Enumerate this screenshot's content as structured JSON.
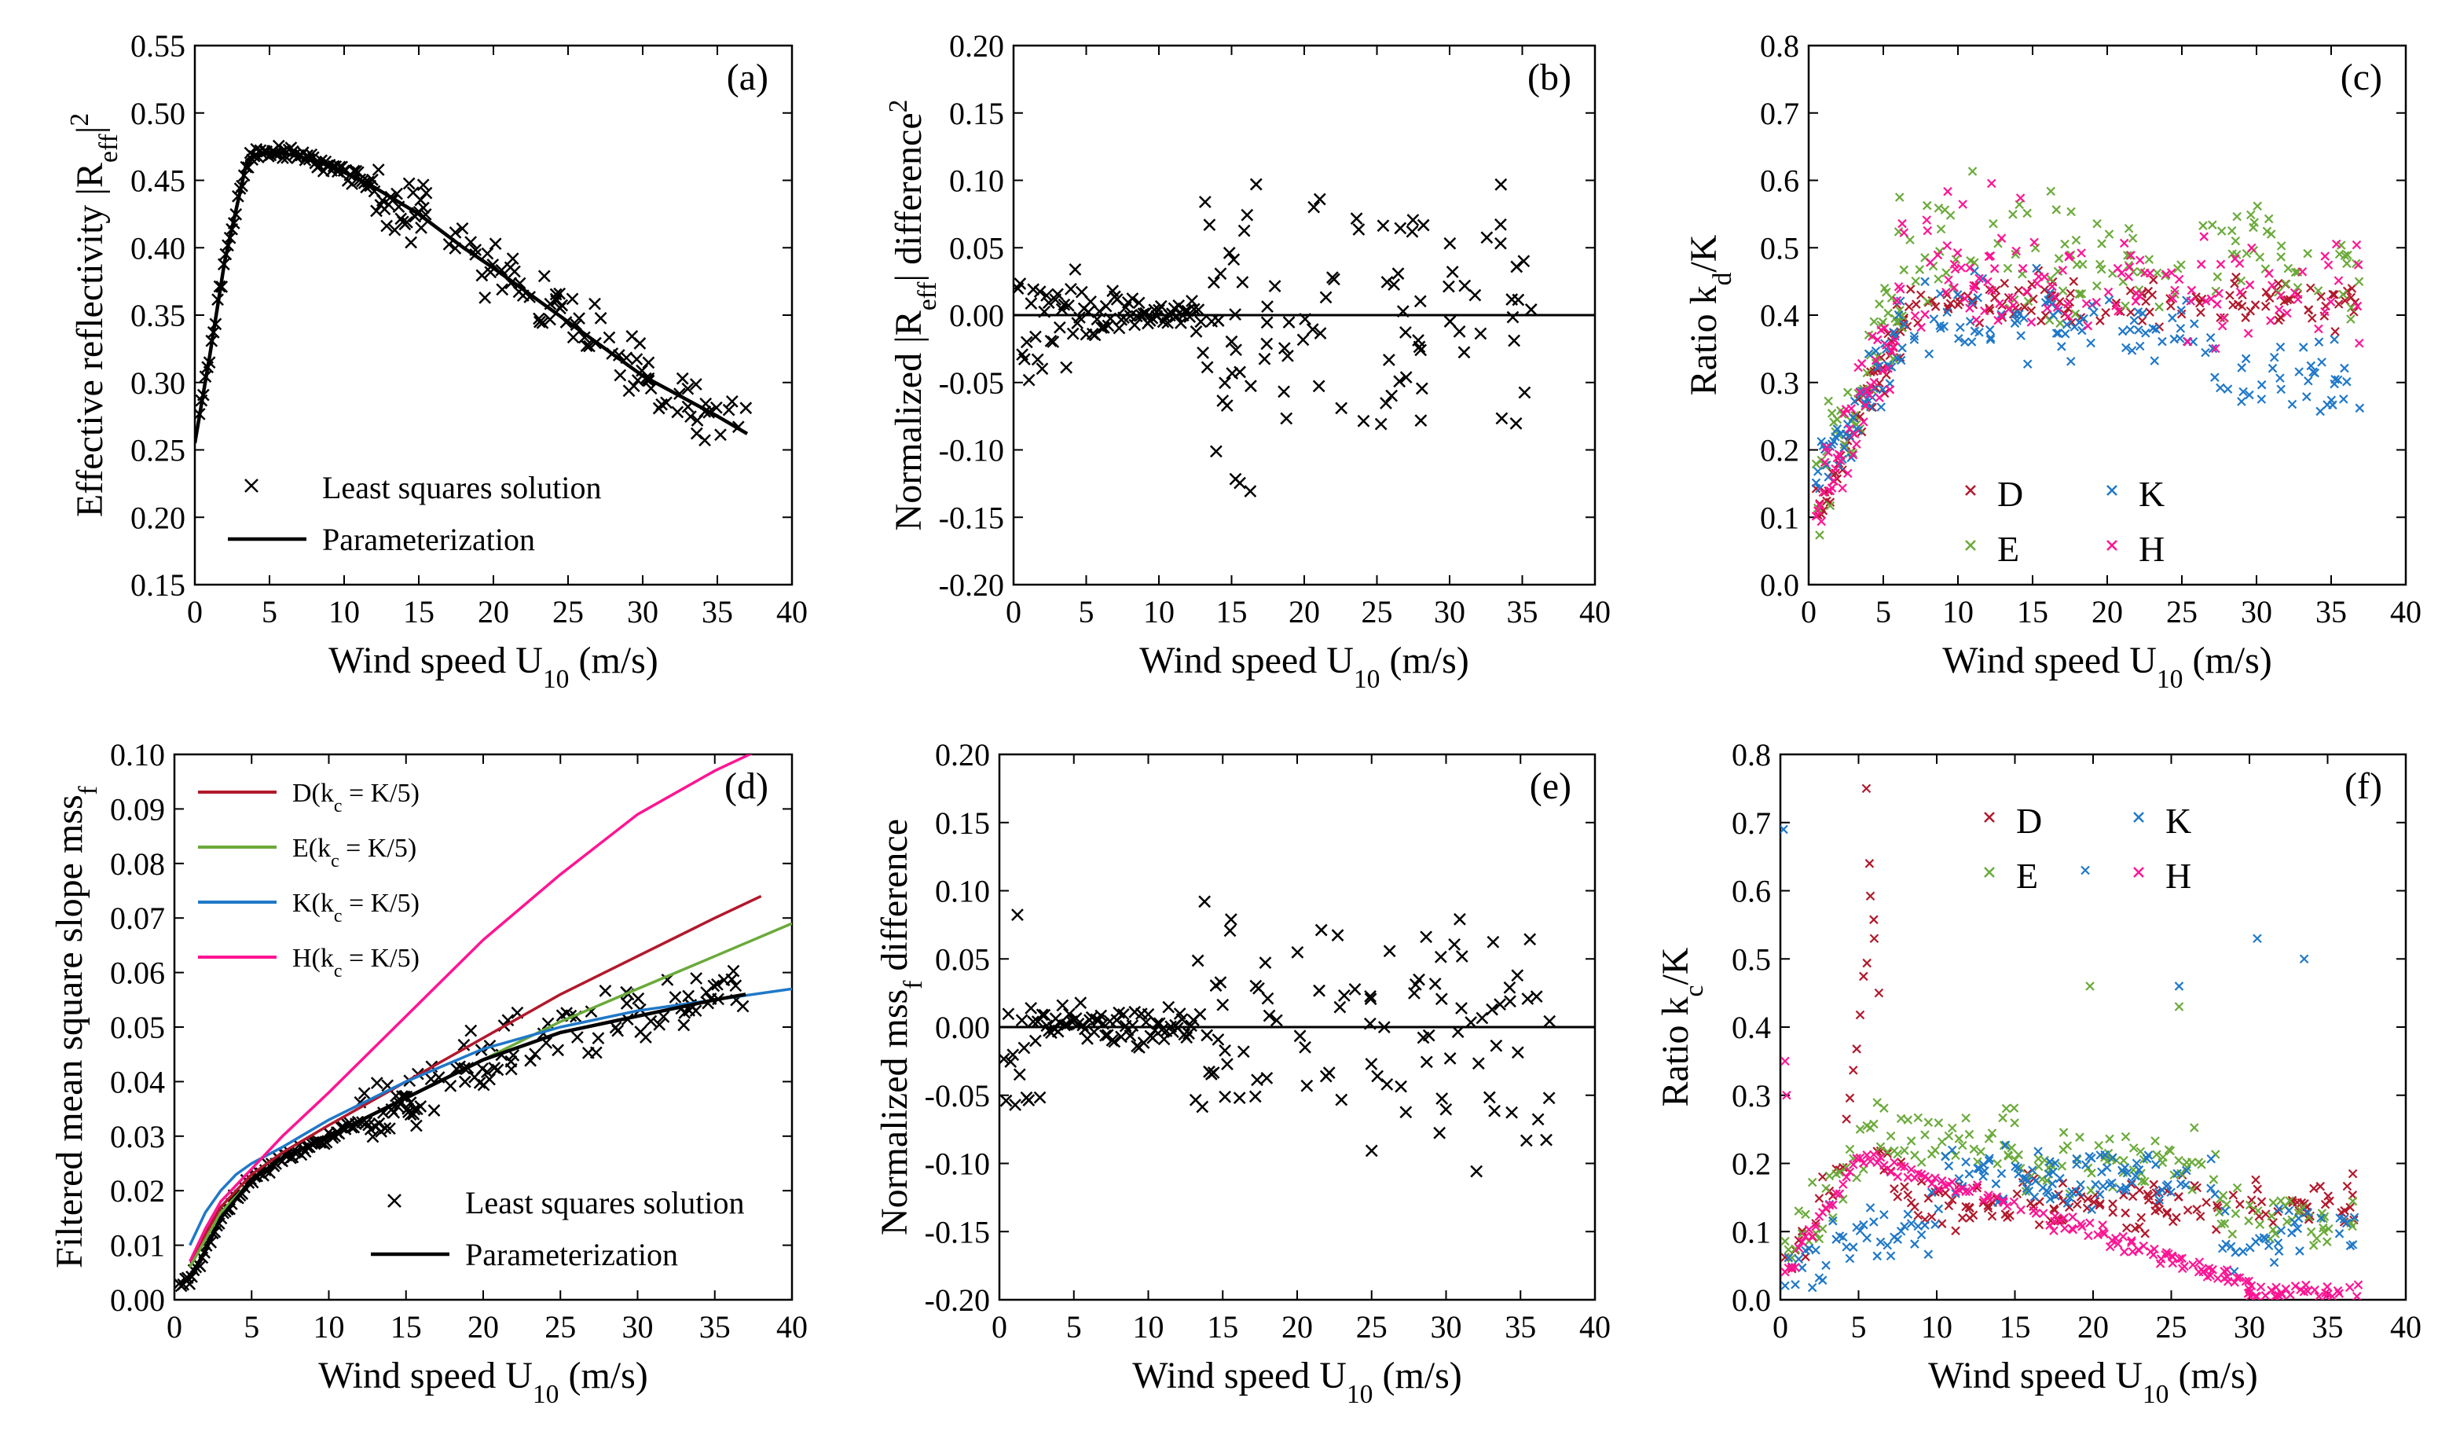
{
  "chart_data": [
    {
      "panel": "(a)",
      "type": "scatter",
      "xlabel": "Wind speed U",
      "xlabel_sub": "10",
      "xlabel_unit": " (m/s)",
      "ylabel": "Effective reflectivity |R",
      "ylabel_sub": "eff",
      "ylabel_sup": "2",
      "ylabel_end": "|",
      "xlim": [
        0,
        40
      ],
      "ylim": [
        0.15,
        0.55
      ],
      "xticks": [
        "0",
        "5",
        "10",
        "15",
        "20",
        "25",
        "30",
        "35",
        "40"
      ],
      "yticks": [
        "0.15",
        "0.20",
        "0.25",
        "0.30",
        "0.35",
        "0.40",
        "0.45",
        "0.50",
        "0.55"
      ],
      "legend": [
        {
          "name": "Least squares solution",
          "marker": "x"
        },
        {
          "name": "Parameterization",
          "marker": "line"
        }
      ],
      "series": [
        {
          "name": "Least squares solution",
          "marker": "x",
          "color": "#000000",
          "gen": "a_scatter"
        },
        {
          "name": "Parameterization",
          "marker": "line",
          "color": "#000000",
          "x": [
            0,
            1,
            2,
            3,
            3.5,
            4,
            5,
            6,
            8,
            10,
            12,
            15,
            18,
            20,
            25,
            30,
            35,
            37
          ],
          "y": [
            0.255,
            0.32,
            0.39,
            0.44,
            0.465,
            0.469,
            0.471,
            0.47,
            0.465,
            0.456,
            0.445,
            0.425,
            0.4,
            0.385,
            0.345,
            0.305,
            0.275,
            0.262
          ]
        }
      ]
    },
    {
      "panel": "(b)",
      "type": "scatter",
      "xlabel": "Wind speed U",
      "xlabel_sub": "10",
      "xlabel_unit": " (m/s)",
      "ylabel": "Normalized |R",
      "ylabel_sub": "eff",
      "ylabel_sup": "2",
      "ylabel_end": "| difference",
      "xlim": [
        0,
        40
      ],
      "ylim": [
        -0.2,
        0.2
      ],
      "xticks": [
        "0",
        "5",
        "10",
        "15",
        "20",
        "25",
        "30",
        "35",
        "40"
      ],
      "yticks": [
        "-0.20",
        "-0.15",
        "-0.10",
        "-0.05",
        "0.00",
        "0.05",
        "0.10",
        "0.15",
        "0.20"
      ],
      "reference_line": 0.0,
      "series": [
        {
          "name": "difference",
          "marker": "x",
          "color": "#000000",
          "gen": "b_scatter"
        }
      ]
    },
    {
      "panel": "(c)",
      "type": "scatter",
      "xlabel": "Wind speed U",
      "xlabel_sub": "10",
      "xlabel_unit": " (m/s)",
      "ylabel": "Ratio k",
      "ylabel_sub": "d",
      "ylabel_end": "/K",
      "xlim": [
        0,
        40
      ],
      "ylim": [
        0.0,
        0.8
      ],
      "xticks": [
        "0",
        "5",
        "10",
        "15",
        "20",
        "25",
        "30",
        "35",
        "40"
      ],
      "yticks": [
        "0.0",
        "0.1",
        "0.2",
        "0.3",
        "0.4",
        "0.5",
        "0.6",
        "0.7",
        "0.8"
      ],
      "legend": [
        {
          "name": "D",
          "color": "#b2182b"
        },
        {
          "name": "K",
          "color": "#1f78c8"
        },
        {
          "name": "E",
          "color": "#6aaa3a"
        },
        {
          "name": "H",
          "color": "#ff1493"
        }
      ],
      "series": [
        {
          "name": "D",
          "color": "#b2182b",
          "gen": "c_D"
        },
        {
          "name": "E",
          "color": "#6aaa3a",
          "gen": "c_E"
        },
        {
          "name": "K",
          "color": "#1f78c8",
          "gen": "c_K"
        },
        {
          "name": "H",
          "color": "#ff1493",
          "gen": "c_H"
        }
      ]
    },
    {
      "panel": "(d)",
      "type": "scatter",
      "xlabel": "Wind speed U",
      "xlabel_sub": "10",
      "xlabel_unit": " (m/s)",
      "ylabel": "Filtered mean square slope mss",
      "ylabel_sub": "f",
      "ylabel_end": "",
      "xlim": [
        0,
        40
      ],
      "ylim": [
        0.0,
        0.1
      ],
      "xticks": [
        "0",
        "5",
        "10",
        "15",
        "20",
        "25",
        "30",
        "35",
        "40"
      ],
      "yticks": [
        "0.00",
        "0.01",
        "0.02",
        "0.03",
        "0.04",
        "0.05",
        "0.06",
        "0.07",
        "0.08",
        "0.09",
        "0.10"
      ],
      "legend_top": [
        {
          "prefix": "D(k",
          "sub": "c",
          "suffix": " = K/5)",
          "color": "#b2182b"
        },
        {
          "prefix": "E(k",
          "sub": "c",
          "suffix": " = K/5)",
          "color": "#6aaa3a"
        },
        {
          "prefix": "K(k",
          "sub": "c",
          "suffix": " = K/5)",
          "color": "#1f78c8"
        },
        {
          "prefix": "H(k",
          "sub": "c",
          "suffix": " = K/5)",
          "color": "#ff1493"
        }
      ],
      "legend_bottom": [
        {
          "name": "Least squares solution",
          "marker": "x"
        },
        {
          "name": "Parameterization",
          "marker": "line"
        }
      ],
      "series": [
        {
          "name": "Least squares solution",
          "marker": "x",
          "color": "#000000",
          "gen": "d_scatter"
        },
        {
          "name": "D(kc = K/5)",
          "marker": "line",
          "color": "#b2182b",
          "x": [
            1,
            2,
            3,
            5,
            7,
            10,
            15,
            20,
            25,
            30,
            35,
            38
          ],
          "y": [
            0.006,
            0.012,
            0.017,
            0.023,
            0.027,
            0.032,
            0.04,
            0.048,
            0.056,
            0.063,
            0.07,
            0.074
          ]
        },
        {
          "name": "E(kc = K/5)",
          "marker": "line",
          "color": "#6aaa3a",
          "x": [
            1,
            2,
            3,
            5,
            7,
            10,
            15,
            20,
            25,
            30,
            35,
            40
          ],
          "y": [
            0.006,
            0.011,
            0.016,
            0.022,
            0.026,
            0.03,
            0.037,
            0.044,
            0.051,
            0.057,
            0.063,
            0.069
          ]
        },
        {
          "name": "K(kc = K/5)",
          "marker": "line",
          "color": "#1f78c8",
          "x": [
            1,
            2,
            3,
            4,
            5,
            7,
            10,
            15,
            20,
            25,
            30,
            35,
            40
          ],
          "y": [
            0.01,
            0.016,
            0.02,
            0.023,
            0.025,
            0.028,
            0.033,
            0.04,
            0.046,
            0.05,
            0.053,
            0.055,
            0.057
          ]
        },
        {
          "name": "H(kc = K/5)",
          "marker": "line",
          "color": "#ff1493",
          "x": [
            1,
            2,
            3,
            5,
            7,
            10,
            15,
            20,
            25,
            30,
            35,
            38
          ],
          "y": [
            0.007,
            0.013,
            0.018,
            0.024,
            0.03,
            0.038,
            0.052,
            0.066,
            0.078,
            0.089,
            0.097,
            0.101
          ]
        },
        {
          "name": "Parameterization",
          "marker": "line",
          "color": "#000000",
          "x": [
            0.5,
            1,
            2,
            3,
            5,
            7,
            10,
            15,
            20,
            25,
            30,
            35,
            37
          ],
          "y": [
            0.003,
            0.004,
            0.009,
            0.015,
            0.022,
            0.026,
            0.03,
            0.037,
            0.044,
            0.049,
            0.052,
            0.055,
            0.056
          ]
        }
      ]
    },
    {
      "panel": "(e)",
      "type": "scatter",
      "xlabel": "Wind speed U",
      "xlabel_sub": "10",
      "xlabel_unit": " (m/s)",
      "ylabel": "Normalized mss",
      "ylabel_sub": "f",
      "ylabel_end": " difference",
      "xlim": [
        0,
        40
      ],
      "ylim": [
        -0.2,
        0.2
      ],
      "xticks": [
        "0",
        "5",
        "10",
        "15",
        "20",
        "25",
        "30",
        "35",
        "40"
      ],
      "yticks": [
        "-0.20",
        "-0.15",
        "-0.10",
        "-0.05",
        "0.00",
        "0.05",
        "0.10",
        "0.15",
        "0.20"
      ],
      "reference_line": 0.0,
      "series": [
        {
          "name": "difference",
          "marker": "x",
          "color": "#000000",
          "gen": "e_scatter"
        }
      ]
    },
    {
      "panel": "(f)",
      "type": "scatter",
      "xlabel": "Wind speed U",
      "xlabel_sub": "10",
      "xlabel_unit": " (m/s)",
      "ylabel": "Ratio k",
      "ylabel_sub": "c",
      "ylabel_end": "/K",
      "xlim": [
        0,
        40
      ],
      "ylim": [
        0.0,
        0.8
      ],
      "xticks": [
        "0",
        "5",
        "10",
        "15",
        "20",
        "25",
        "30",
        "35",
        "40"
      ],
      "yticks": [
        "0.0",
        "0.1",
        "0.2",
        "0.3",
        "0.4",
        "0.5",
        "0.6",
        "0.7",
        "0.8"
      ],
      "legend": [
        {
          "name": "D",
          "color": "#b2182b"
        },
        {
          "name": "K",
          "color": "#1f78c8"
        },
        {
          "name": "E",
          "color": "#6aaa3a"
        },
        {
          "name": "H",
          "color": "#ff1493"
        }
      ],
      "series": [
        {
          "name": "D",
          "color": "#b2182b",
          "gen": "f_D"
        },
        {
          "name": "E",
          "color": "#6aaa3a",
          "gen": "f_E"
        },
        {
          "name": "K",
          "color": "#1f78c8",
          "gen": "f_K"
        },
        {
          "name": "H",
          "color": "#ff1493",
          "gen": "f_H"
        }
      ]
    }
  ]
}
